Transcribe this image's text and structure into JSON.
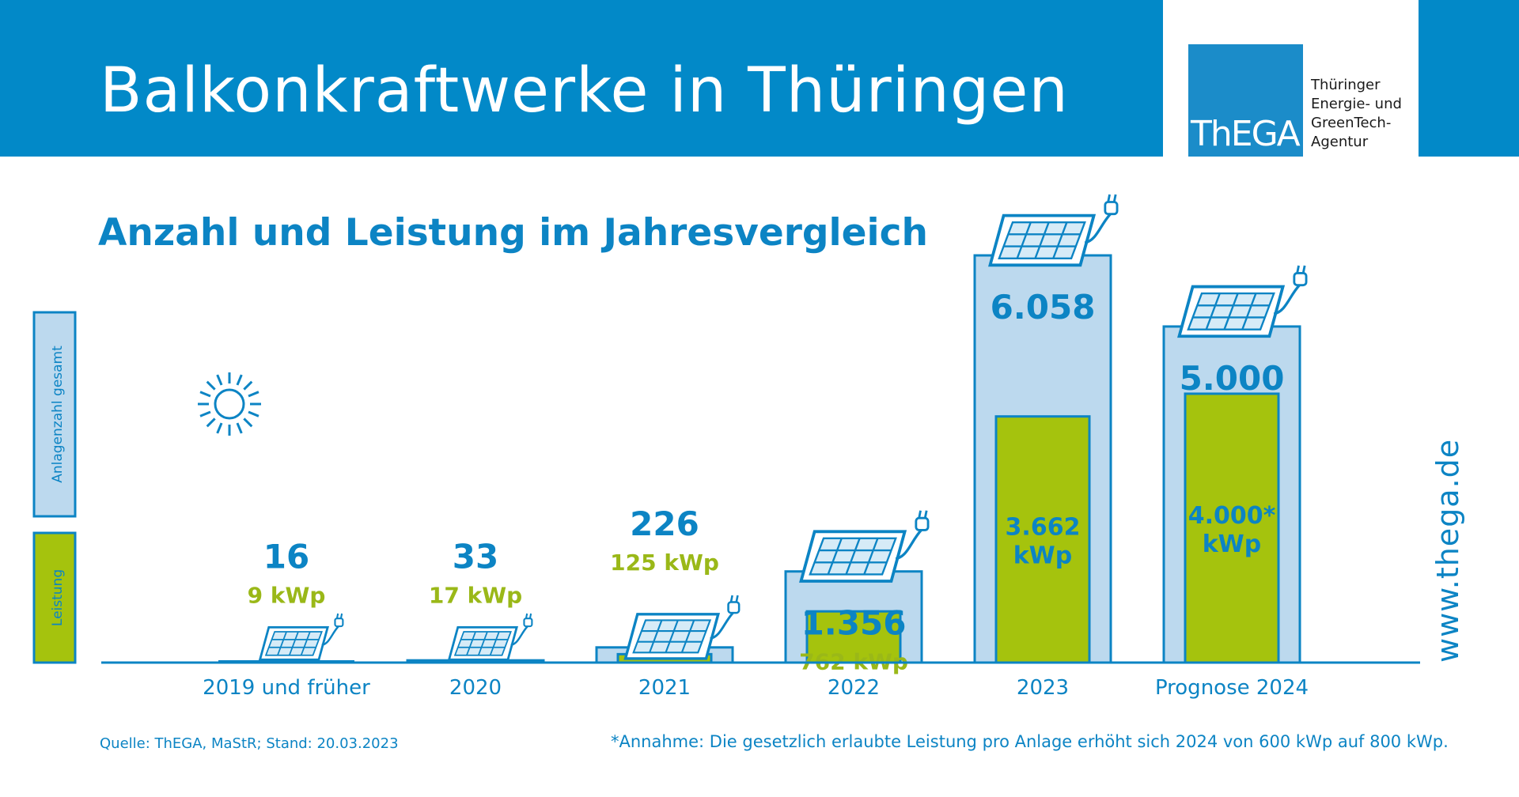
{
  "header": {
    "title": "Balkonkraftwerke in Thüringen",
    "logo": "ThEGA",
    "agency_lines": [
      "Thüringer",
      "Energie- und",
      "GreenTech-",
      "Agentur"
    ]
  },
  "subtitle": "Anzahl und Leistung im Jahresvergleich",
  "legend": {
    "count_label": "Anlagenzahl gesamt",
    "power_label": "Leistung"
  },
  "source": "Quelle: ThEGA, MaStR; Stand: 20.03.2023",
  "footnote": "*Annahme: Die gesetzlich erlaubte Leistung pro Anlage erhöht sich 2024 von 600 kWp auf 800 kWp.",
  "url": "www.thega.de",
  "colors": {
    "brand_blue": "#0289c8",
    "text_blue": "#0c84c4",
    "count_bar": "#bcd9ee",
    "power_bar": "#a5c30d",
    "power_text": "#9ab818"
  },
  "icons": [
    "sun-icon",
    "solar-panel-plug-icon"
  ],
  "chart_data": {
    "type": "bar",
    "categories": [
      "2019 und früher",
      "2020",
      "2021",
      "2022",
      "2023",
      "Prognose 2024"
    ],
    "series": [
      {
        "name": "Anlagenzahl gesamt",
        "values": [
          16,
          33,
          226,
          1356,
          6058,
          5000
        ]
      },
      {
        "name": "Leistung",
        "values": [
          9,
          17,
          125,
          762,
          3662,
          4000
        ],
        "unit": "kWp"
      }
    ],
    "count_labels": [
      "16",
      "33",
      "226",
      "1.356",
      "6.058",
      "5.000"
    ],
    "power_labels": [
      "9 kWp",
      "17 kWp",
      "125 kWp",
      "762 kWp",
      "3.662\nkWp",
      "4.000*\nkWp"
    ],
    "power_label_inside_bar": [
      false,
      false,
      false,
      false,
      true,
      true
    ],
    "ylim": [
      0,
      6058
    ]
  }
}
